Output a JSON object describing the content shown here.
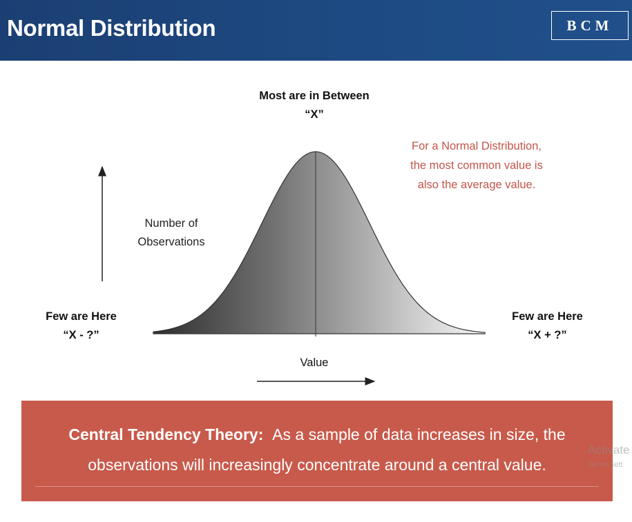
{
  "header": {
    "title": "Normal Distribution",
    "logo_text": "BCM"
  },
  "diagram": {
    "peak_label": "Most are in Between",
    "peak_value": "“X”",
    "note_lines": [
      "For a Normal Distribution,",
      "the most common value is",
      "also the average value."
    ],
    "y_axis_lines": [
      "Number of",
      "Observations"
    ],
    "x_axis_label": "Value",
    "left_tail_label": "Few are Here",
    "left_tail_value": "“X - ?”",
    "right_tail_label": "Few are Here",
    "right_tail_value": "“X + ?”"
  },
  "banner": {
    "term": "Central Tendency Theory:",
    "line1_rest": "As a sample of data increases in size, the",
    "line2": "observations will increasingly concentrate around a central value."
  },
  "watermark": {
    "line1": "Activate",
    "line2": "Go to Sett"
  },
  "colors": {
    "header": "#1b3f73",
    "note": "#c2554a",
    "banner": "#c85a4b"
  }
}
